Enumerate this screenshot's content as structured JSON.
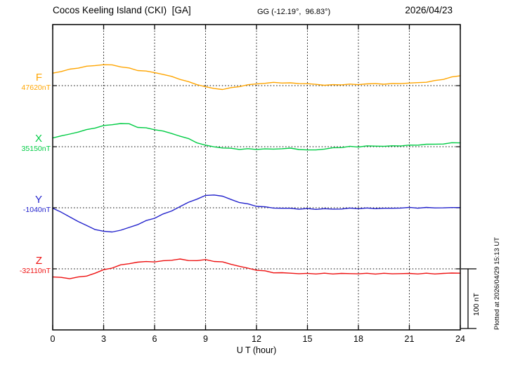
{
  "header": {
    "title": "Cocos Keeling Island (CKI)  [GA]",
    "coords": "GG (-12.19°,  96.83°)",
    "date": "2026/04/23"
  },
  "xaxis": {
    "label": "U T (hour)",
    "ticks": [
      "0",
      "3",
      "6",
      "9",
      "12",
      "15",
      "18",
      "21",
      "24"
    ]
  },
  "scale_bar": {
    "label": "100 nT",
    "nT": 100
  },
  "watermark": "Plotted at 2026/04/29 15:13 UT",
  "chart_data": {
    "type": "line",
    "title": "Cocos Keeling Island (CKI) [GA] magnetogram 2026/04/23",
    "xlabel": "U T (hour)",
    "xlim_hours": [
      0,
      24
    ],
    "x_step_hours": 0.5,
    "x_tick_labels": [
      "0",
      "3",
      "6",
      "9",
      "12",
      "15",
      "18",
      "21",
      "24"
    ],
    "grid": "dotted vertical every 3 h, dotted horizontal at each component baseline",
    "scale_bar_nT": 100,
    "note": "offsets_nT are deviations from each component baseline value",
    "series": [
      {
        "name": "F",
        "baseline_label": "47620nT",
        "baseline_nT": 47620,
        "color": "#FFA500",
        "offsets_nT": [
          21,
          24,
          27,
          30,
          32,
          34,
          35,
          34.5,
          32,
          29,
          26,
          24,
          22,
          19,
          15,
          11,
          6,
          2,
          -2,
          -5,
          -6,
          -4,
          -1,
          1,
          3,
          4,
          5,
          5,
          4,
          4,
          3,
          2,
          1,
          1,
          2,
          2,
          2,
          3,
          3,
          3,
          3,
          4,
          4,
          5,
          6,
          8,
          11,
          14,
          17
        ]
      },
      {
        "name": "X",
        "baseline_label": "35150nT",
        "baseline_nT": 35150,
        "color": "#00CC44",
        "offsets_nT": [
          15,
          18,
          21,
          25,
          28,
          32,
          35,
          37,
          39,
          38,
          33,
          31,
          29,
          26,
          22,
          18,
          13,
          7,
          2,
          0,
          -2,
          -3,
          -4,
          -4,
          -4,
          -4,
          -4,
          -3,
          -3,
          -4,
          -6,
          -5,
          -4,
          -2,
          -1,
          0,
          0,
          1,
          1,
          1,
          1,
          2,
          2,
          3,
          4,
          4,
          5,
          6,
          7
        ]
      },
      {
        "name": "Y",
        "baseline_label": "-1040nT",
        "baseline_nT": -1040,
        "color": "#2222CC",
        "offsets_nT": [
          0,
          -8,
          -15,
          -23,
          -30,
          -36,
          -40,
          -40,
          -38,
          -33,
          -28,
          -22,
          -17,
          -11,
          -5,
          2,
          9,
          15,
          20,
          22,
          19,
          14,
          9,
          6,
          3,
          1,
          0,
          -1,
          -1,
          -2,
          -2,
          -2,
          -2,
          -2,
          -2,
          -1,
          -1,
          -1,
          -1,
          -1,
          -1,
          0,
          0,
          0,
          0,
          0,
          0,
          0,
          1
        ]
      },
      {
        "name": "Z",
        "baseline_label": "-32110nT",
        "baseline_nT": -32110,
        "color": "#EE1111",
        "offsets_nT": [
          -13,
          -15,
          -16,
          -14,
          -12,
          -7,
          -2,
          2,
          6,
          9,
          11,
          12,
          12,
          13,
          15,
          16,
          14,
          14,
          15,
          13,
          11,
          8,
          4,
          1,
          -2,
          -4,
          -6,
          -7,
          -7,
          -8,
          -8,
          -8,
          -8,
          -8,
          -8,
          -8,
          -8,
          -8,
          -8,
          -8,
          -8,
          -8,
          -8,
          -8,
          -8,
          -8,
          -8,
          -7,
          -7
        ]
      }
    ]
  }
}
